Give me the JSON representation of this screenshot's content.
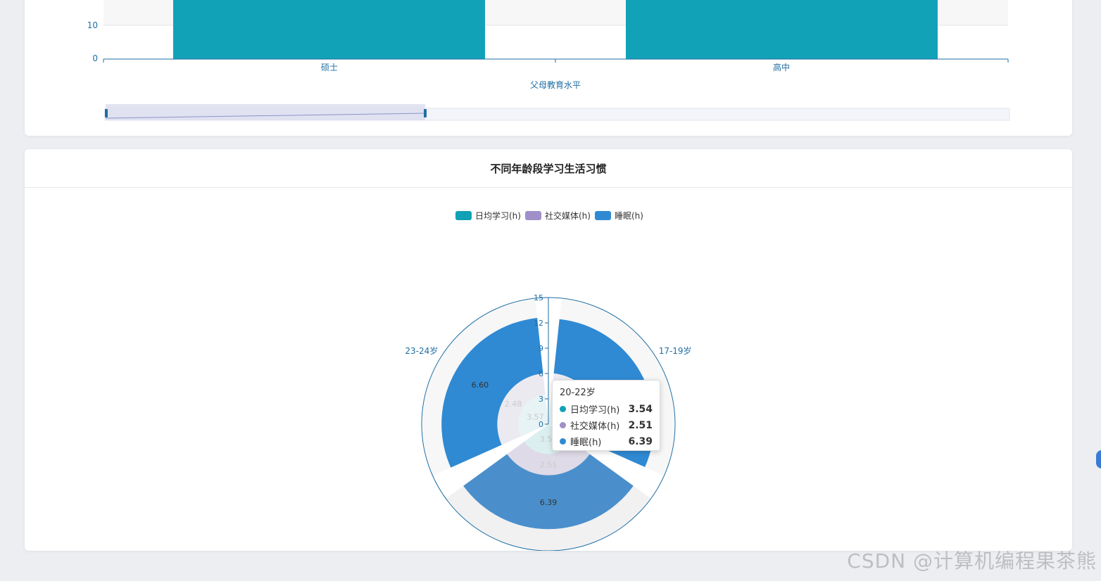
{
  "top_chart": {
    "xlabel": "父母教育水平",
    "y_ticks": [
      "10",
      "0"
    ],
    "categories": [
      "硕士",
      "高中"
    ],
    "bar_color": "#12a2b8"
  },
  "bottom_chart": {
    "title": "不同年龄段学习生活习惯",
    "legend": [
      {
        "label": "日均学习(h)",
        "color": "#11a0b5"
      },
      {
        "label": "社交媒体(h)",
        "color": "#a08fc9"
      },
      {
        "label": "睡眠(h)",
        "color": "#2f8ad3"
      }
    ],
    "tooltip": {
      "title": "20-22岁",
      "rows": [
        {
          "label": "日均学习(h)",
          "value": "3.54",
          "color": "#11a0b5"
        },
        {
          "label": "社交媒体(h)",
          "value": "2.51",
          "color": "#a08fc9"
        },
        {
          "label": "睡眠(h)",
          "value": "6.39",
          "color": "#2f8ad3"
        }
      ]
    }
  },
  "chart_data": [
    {
      "type": "bar",
      "categories": [
        "硕士",
        "高中"
      ],
      "xlabel": "父母教育水平",
      "ylabel": "",
      "yaxis_visible_ticks": [
        0,
        10
      ]
    },
    {
      "type": "polar-stacked-bar",
      "title": "不同年龄段学习生活习惯",
      "categories": [
        "17-19岁",
        "20-22岁",
        "23-24岁"
      ],
      "radius_ticks": [
        0,
        3,
        6,
        9,
        12,
        15
      ],
      "rlim": [
        0,
        15
      ],
      "series": [
        {
          "name": "日均学习(h)",
          "values": [
            3.54,
            3.54,
            3.57
          ]
        },
        {
          "name": "社交媒体(h)",
          "values": [
            2.51,
            2.51,
            2.48
          ]
        },
        {
          "name": "睡眠(h)",
          "values": [
            6.46,
            6.39,
            6.6
          ]
        }
      ],
      "legend_position": "top"
    }
  ],
  "watermark": "CSDN @计算机编程果茶熊"
}
